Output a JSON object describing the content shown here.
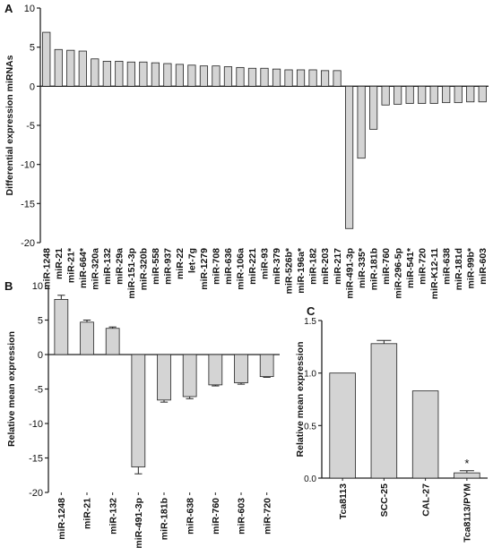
{
  "panels": {
    "a": {
      "label": "A"
    },
    "b": {
      "label": "B"
    },
    "c": {
      "label": "C"
    }
  },
  "colors": {
    "bar_fill": "#d4d4d4",
    "bar_stroke": "#222222",
    "axis": "#222222"
  },
  "chart_data": [
    {
      "id": "a",
      "type": "bar",
      "ylabel": "Differential expression miRNAs",
      "xlabel": "",
      "ylim": [
        -20,
        10
      ],
      "yticks": [
        -20,
        -15,
        -10,
        -5,
        0,
        5,
        10
      ],
      "error_bars": false,
      "categories": [
        "miR-1248",
        "miR-21",
        "miR-21*",
        "miR-664*",
        "miR-320a",
        "miR-132",
        "miR-29a",
        "miR-151-3p",
        "miR-320b",
        "miR-558",
        "miR-937",
        "miR-22",
        "let-7g",
        "miR-1279",
        "miR-708",
        "miR-636",
        "miR-106a",
        "miR-221",
        "miR-93",
        "miR-379",
        "miR-526b*",
        "miR-196a*",
        "miR-182",
        "miR-203",
        "miR-217",
        "miR-491-3p",
        "miR-335*",
        "miR-181b",
        "miR-760",
        "miR-296-5p",
        "miR-541*",
        "miR-720",
        "miR-K12-11",
        "miR-638",
        "miR-181d",
        "miR-99b*",
        "miR-603"
      ],
      "values": [
        6.9,
        4.7,
        4.6,
        4.5,
        3.5,
        3.2,
        3.2,
        3.1,
        3.1,
        3.0,
        2.9,
        2.8,
        2.7,
        2.6,
        2.6,
        2.5,
        2.4,
        2.3,
        2.3,
        2.2,
        2.1,
        2.1,
        2.1,
        2.0,
        2.0,
        -18.2,
        -9.2,
        -5.5,
        -2.4,
        -2.3,
        -2.2,
        -2.2,
        -2.2,
        -2.1,
        -2.1,
        -2.0,
        -2.0
      ]
    },
    {
      "id": "b",
      "type": "bar",
      "ylabel": "Relative mean expression",
      "xlabel": "",
      "ylim": [
        -20,
        10
      ],
      "yticks": [
        -20,
        -15,
        -10,
        -5,
        0,
        5,
        10
      ],
      "error_bars": true,
      "categories": [
        "miR-1248",
        "miR-21",
        "miR-132",
        "miR-491-3p",
        "miR-181b",
        "miR-638",
        "miR-760",
        "miR-603",
        "miR-720"
      ],
      "values": [
        8.0,
        4.7,
        3.8,
        -16.3,
        -6.6,
        -6.1,
        -4.4,
        -4.1,
        -3.2
      ],
      "errors": [
        0.6,
        0.3,
        0.2,
        1.0,
        0.3,
        0.3,
        0.15,
        0.2,
        0.1
      ]
    },
    {
      "id": "c",
      "type": "bar",
      "ylabel": "Relative mean expression",
      "xlabel": "",
      "ylim": [
        0,
        1.5
      ],
      "yticks": [
        0.0,
        0.5,
        1.0,
        1.5
      ],
      "error_bars": true,
      "categories": [
        "Tca8113",
        "SCC-25",
        "CAL-27",
        "Tca8113/PYM"
      ],
      "values": [
        1.0,
        1.28,
        0.83,
        0.05
      ],
      "errors": [
        0,
        0.03,
        0,
        0.02
      ],
      "annotations": [
        {
          "category": "Tca8113/PYM",
          "text": "*"
        }
      ]
    }
  ]
}
